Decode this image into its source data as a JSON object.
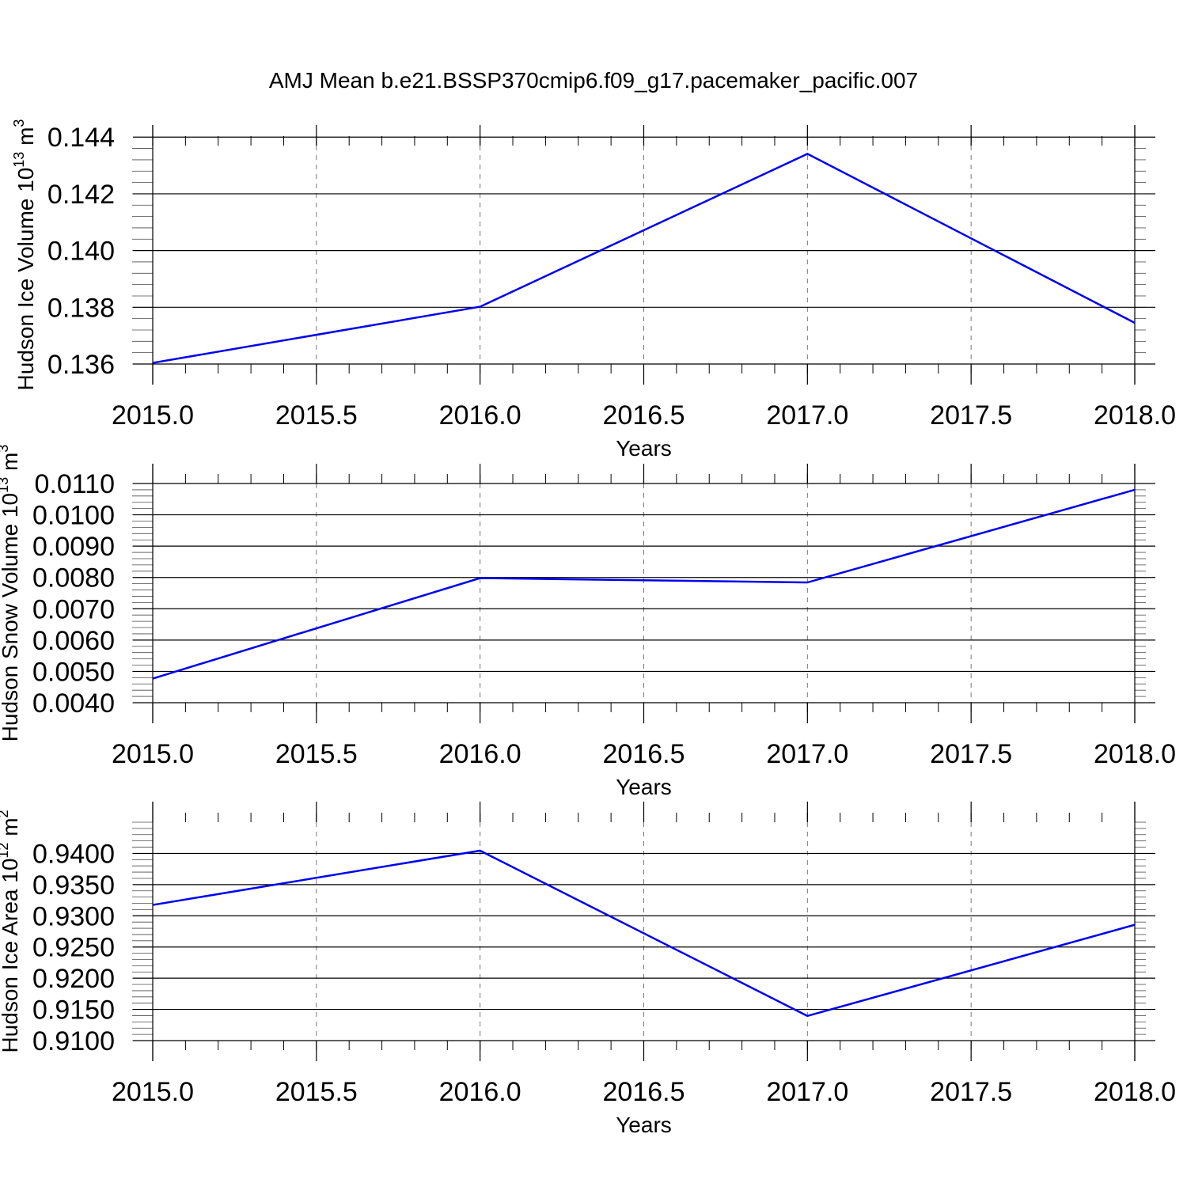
{
  "title": "AMJ Mean b.e21.BSSP370cmip6.f09_g17.pacemaker_pacific.007",
  "chart_data": [
    {
      "type": "line",
      "title": "",
      "xlabel": "Years",
      "ylabel": {
        "text": "Hudson Ice Volume 10",
        "exp": "13",
        "unit": "m",
        "unit_exp": "3"
      },
      "xlim": [
        2015.0,
        2018.0
      ],
      "ylim": [
        0.136,
        0.1437
      ],
      "xticks": [
        2015.0,
        2015.5,
        2016.0,
        2016.5,
        2017.0,
        2017.5,
        2018.0
      ],
      "xtick_labels": [
        "2015.0",
        "2015.5",
        "2016.0",
        "2016.5",
        "2017.0",
        "2017.5",
        "2018.0"
      ],
      "yticks": [
        0.136,
        0.138,
        0.14,
        0.142,
        0.144
      ],
      "ytick_labels": [
        "0.136",
        "0.138",
        "0.140",
        "0.142",
        "0.144"
      ],
      "grid": "vertical dashed",
      "color": "#0000ee",
      "series": [
        {
          "x": [
            2015,
            2016,
            2017,
            2018
          ],
          "y": [
            0.13604,
            0.13802,
            0.14341,
            0.13745
          ]
        }
      ]
    },
    {
      "type": "line",
      "title": "",
      "xlabel": "Years",
      "ylabel": {
        "text": "Hudson Snow Volume 10",
        "exp": "13",
        "unit": "m",
        "unit_exp": "3"
      },
      "xlim": [
        2015.0,
        2018.0
      ],
      "ylim": [
        0.004,
        0.011
      ],
      "xticks": [
        2015.0,
        2015.5,
        2016.0,
        2016.5,
        2017.0,
        2017.5,
        2018.0
      ],
      "xtick_labels": [
        "2015.0",
        "2015.5",
        "2016.0",
        "2016.5",
        "2017.0",
        "2017.5",
        "2018.0"
      ],
      "yticks": [
        0.004,
        0.005,
        0.006,
        0.007,
        0.008,
        0.009,
        0.01,
        0.011
      ],
      "ytick_labels": [
        "0.0040",
        "0.0050",
        "0.0060",
        "0.0070",
        "0.0080",
        "0.0090",
        "0.0100",
        "0.0110"
      ],
      "grid": "vertical dashed",
      "color": "#0000ee",
      "series": [
        {
          "x": [
            2015,
            2016,
            2017,
            2018
          ],
          "y": [
            0.00477,
            0.00798,
            0.00784,
            0.0108
          ]
        }
      ]
    },
    {
      "type": "line",
      "title": "",
      "xlabel": "Years",
      "ylabel": {
        "text": "Hudson Ice Area 10",
        "exp": "12",
        "unit": "m",
        "unit_exp": "2"
      },
      "xlim": [
        2015.0,
        2018.0
      ],
      "ylim": [
        0.91,
        0.945
      ],
      "xticks": [
        2015.0,
        2015.5,
        2016.0,
        2016.5,
        2017.0,
        2017.5,
        2018.0
      ],
      "xtick_labels": [
        "2015.0",
        "2015.5",
        "2016.0",
        "2016.5",
        "2017.0",
        "2017.5",
        "2018.0"
      ],
      "yticks": [
        0.91,
        0.915,
        0.92,
        0.925,
        0.93,
        0.935,
        0.94
      ],
      "ytick_labels": [
        "0.9100",
        "0.9150",
        "0.9200",
        "0.9250",
        "0.9300",
        "0.9350",
        "0.9400"
      ],
      "grid": "vertical dashed",
      "color": "#0000ee",
      "series": [
        {
          "x": [
            2015,
            2016,
            2017,
            2018
          ],
          "y": [
            0.93174,
            0.94044,
            0.91395,
            0.92856
          ]
        }
      ]
    }
  ]
}
